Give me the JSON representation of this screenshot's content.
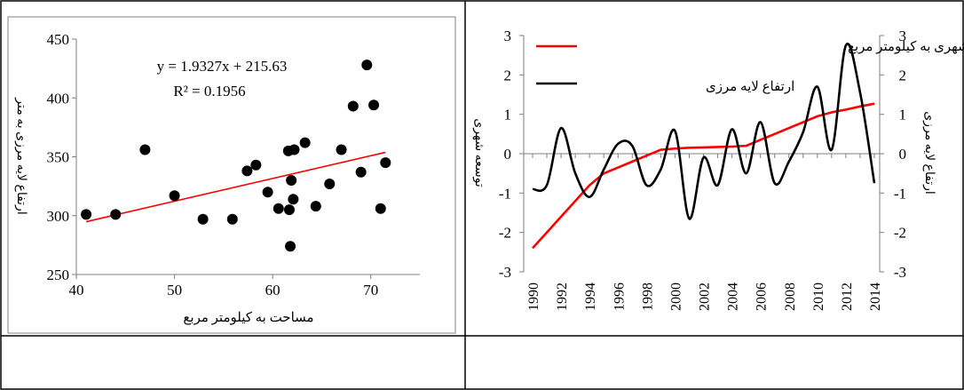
{
  "chart_data": [
    {
      "type": "scatter",
      "xlabel": "مساحت به کیلومتر مربع",
      "ylabel": "ارتفاع لایه مرزی به متر",
      "xlim": [
        40,
        75
      ],
      "ylim": [
        250,
        450
      ],
      "xticks": [
        "40",
        "50",
        "60",
        "70"
      ],
      "yticks": [
        "250",
        "300",
        "350",
        "400",
        "450"
      ],
      "equation": "y = 1.9327x   + 215.63",
      "r2": "R² = 0.1956",
      "trendline": {
        "slope": 1.9327,
        "intercept": 215.63,
        "x_range": [
          41,
          71.5
        ],
        "color": "#ff0000"
      },
      "point_color": "#000000",
      "points": [
        [
          41,
          301
        ],
        [
          44,
          301
        ],
        [
          47,
          356
        ],
        [
          50,
          317
        ],
        [
          52.9,
          297
        ],
        [
          55.9,
          297
        ],
        [
          57.4,
          338
        ],
        [
          58.3,
          343
        ],
        [
          59.5,
          320
        ],
        [
          60.6,
          306
        ],
        [
          61.6,
          355
        ],
        [
          61.7,
          305
        ],
        [
          61.8,
          274
        ],
        [
          61.9,
          330
        ],
        [
          62.1,
          314
        ],
        [
          62.2,
          356
        ],
        [
          63.3,
          362
        ],
        [
          64.4,
          308
        ],
        [
          65.8,
          327
        ],
        [
          67,
          356
        ],
        [
          68.2,
          393
        ],
        [
          69,
          337
        ],
        [
          69.6,
          428
        ],
        [
          70.3,
          394
        ],
        [
          71,
          306
        ],
        [
          71.5,
          345
        ]
      ]
    },
    {
      "type": "line",
      "ylabel_left": "توسعه شهری",
      "ylabel_right": "ارتفاع لایه مرزی",
      "ylim": [
        -3,
        3
      ],
      "yticks": [
        "-3",
        "-2",
        "-1",
        "0",
        "1",
        "2",
        "3"
      ],
      "x_tick_labels": [
        "1990",
        "1992",
        "1994",
        "1996",
        "1998",
        "2000",
        "2002",
        "2004",
        "2006",
        "2008",
        "2010",
        "2012",
        "2014"
      ],
      "x": [
        1990,
        1991,
        1992,
        1993,
        1994,
        1995,
        1996,
        1997,
        1998,
        1999,
        2000,
        2001,
        2002,
        2003,
        2004,
        2005,
        2006,
        2007,
        2008,
        2009,
        2010,
        2011,
        2012,
        2013,
        2014
      ],
      "series": [
        {
          "name": "میزان توسعه شهری به کیلومتر مربع",
          "color": "#ff0000",
          "values": [
            -2.4,
            -2.0,
            -1.6,
            -1.2,
            -0.8,
            -0.5,
            -0.35,
            -0.2,
            -0.05,
            0.1,
            0.13,
            0.15,
            0.16,
            0.17,
            0.18,
            0.2,
            0.35,
            0.5,
            0.65,
            0.8,
            0.95,
            1.05,
            1.12,
            1.2,
            1.27
          ]
        },
        {
          "name": "ارتفاع لایه مرزی",
          "color": "#000000",
          "values": [
            -0.9,
            -0.8,
            0.65,
            -0.5,
            -1.1,
            -0.4,
            0.25,
            0.2,
            -0.8,
            -0.4,
            0.58,
            -1.65,
            -0.1,
            -0.8,
            0.62,
            -0.5,
            0.8,
            -0.75,
            -0.2,
            0.55,
            1.7,
            0.1,
            2.75,
            1.55,
            -0.75
          ]
        }
      ]
    }
  ]
}
